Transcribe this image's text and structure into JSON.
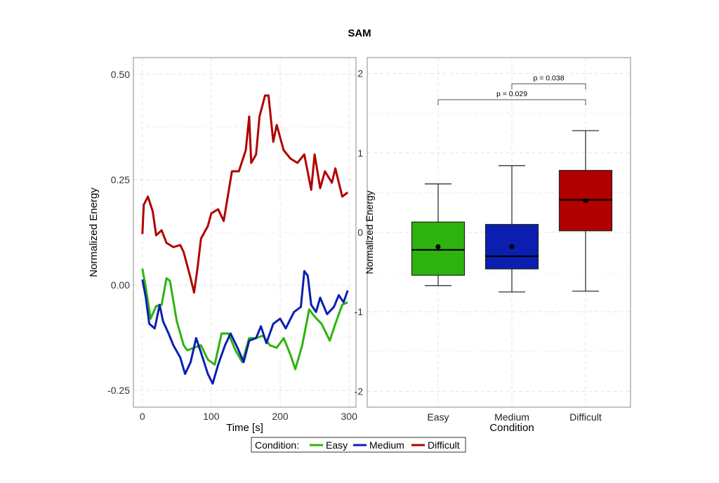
{
  "title": "SAM",
  "colors": {
    "Easy": "#2db30e",
    "Medium": "#0a1fb0",
    "Difficult": "#b00000"
  },
  "legend": {
    "title": "Condition:",
    "entries": [
      "Easy",
      "Medium",
      "Difficult"
    ],
    "placement": "bottom"
  },
  "chart_data": [
    {
      "type": "line",
      "xlabel": "Time [s]",
      "ylabel": "Normalized Energy",
      "xlim": [
        -13,
        310
      ],
      "ylim": [
        -0.29,
        0.54
      ],
      "xticks": [
        0,
        100,
        200,
        300
      ],
      "xtick_labels": [
        "0",
        "100",
        "200",
        "300"
      ],
      "yticks": [
        -0.25,
        0,
        0.25,
        0.5
      ],
      "ytick_labels": [
        "-0.25",
        "0.00",
        "0.25",
        "0.50"
      ],
      "grid": true,
      "series": [
        {
          "name": "Easy",
          "x": [
            0,
            5,
            12,
            20,
            28,
            35,
            40,
            50,
            60,
            65,
            75,
            85,
            95,
            105,
            115,
            125,
            135,
            145,
            155,
            165,
            175,
            185,
            195,
            205,
            215,
            222,
            232,
            242,
            250,
            260,
            272,
            280,
            290,
            298
          ],
          "y": [
            0.039,
            -0.007,
            -0.08,
            -0.05,
            -0.047,
            0.016,
            0.01,
            -0.086,
            -0.143,
            -0.155,
            -0.149,
            -0.143,
            -0.177,
            -0.189,
            -0.115,
            -0.115,
            -0.155,
            -0.183,
            -0.126,
            -0.126,
            -0.12,
            -0.143,
            -0.149,
            -0.126,
            -0.166,
            -0.2,
            -0.143,
            -0.058,
            -0.075,
            -0.092,
            -0.132,
            -0.092,
            -0.047,
            -0.041
          ]
        },
        {
          "name": "Medium",
          "x": [
            0,
            5,
            10,
            18,
            25,
            30,
            38,
            45,
            55,
            62,
            70,
            78,
            85,
            95,
            102,
            110,
            120,
            128,
            138,
            147,
            155,
            165,
            172,
            180,
            190,
            200,
            208,
            220,
            230,
            235,
            240,
            245,
            252,
            258,
            268,
            278,
            285,
            292,
            298
          ],
          "y": [
            0.013,
            -0.03,
            -0.092,
            -0.103,
            -0.047,
            -0.086,
            -0.115,
            -0.143,
            -0.172,
            -0.211,
            -0.183,
            -0.126,
            -0.16,
            -0.211,
            -0.234,
            -0.189,
            -0.143,
            -0.115,
            -0.149,
            -0.183,
            -0.132,
            -0.126,
            -0.098,
            -0.138,
            -0.092,
            -0.08,
            -0.103,
            -0.064,
            -0.052,
            0.033,
            0.022,
            -0.047,
            -0.064,
            -0.03,
            -0.069,
            -0.052,
            -0.024,
            -0.041,
            -0.013
          ]
        },
        {
          "name": "Difficult",
          "x": [
            0,
            2,
            8,
            15,
            20,
            28,
            35,
            45,
            55,
            60,
            70,
            75,
            80,
            85,
            95,
            100,
            110,
            118,
            125,
            130,
            140,
            150,
            155,
            158,
            165,
            170,
            178,
            183,
            190,
            195,
            205,
            215,
            225,
            235,
            245,
            250,
            258,
            265,
            275,
            280,
            290,
            298
          ],
          "y": [
            0.121,
            0.19,
            0.21,
            0.175,
            0.118,
            0.13,
            0.1,
            0.09,
            0.095,
            0.078,
            0.016,
            -0.018,
            0.04,
            0.11,
            0.14,
            0.17,
            0.18,
            0.152,
            0.22,
            0.27,
            0.27,
            0.32,
            0.4,
            0.29,
            0.31,
            0.4,
            0.45,
            0.45,
            0.34,
            0.38,
            0.32,
            0.3,
            0.29,
            0.31,
            0.226,
            0.31,
            0.23,
            0.27,
            0.243,
            0.277,
            0.21,
            0.22
          ]
        }
      ]
    },
    {
      "type": "box",
      "xlabel": "Condition",
      "ylabel": "Normalized Energy",
      "categories": [
        "Easy",
        "Medium",
        "Difficult"
      ],
      "ylim": [
        -2.2,
        2.2
      ],
      "yticks": [
        -2,
        -1,
        0,
        1,
        2
      ],
      "ytick_labels": [
        "-2",
        "-1",
        "0",
        "1",
        "2"
      ],
      "grid": true,
      "boxes": [
        {
          "category": "Easy",
          "whisker_low": -0.67,
          "q1": -0.54,
          "median": -0.22,
          "q3": 0.13,
          "whisker_high": 0.61,
          "mean": -0.18
        },
        {
          "category": "Medium",
          "whisker_low": -0.75,
          "q1": -0.46,
          "median": -0.3,
          "q3": 0.1,
          "whisker_high": 0.84,
          "mean": -0.18
        },
        {
          "category": "Difficult",
          "whisker_low": -0.74,
          "q1": 0.02,
          "median": 0.41,
          "q3": 0.78,
          "whisker_high": 1.28,
          "mean": 0.4
        }
      ],
      "annotations": [
        {
          "from": "Easy",
          "to": "Difficult",
          "y": 1.67,
          "label": "p = 0.029"
        },
        {
          "from": "Medium",
          "to": "Difficult",
          "y": 1.87,
          "label": "p = 0.038"
        }
      ]
    }
  ]
}
